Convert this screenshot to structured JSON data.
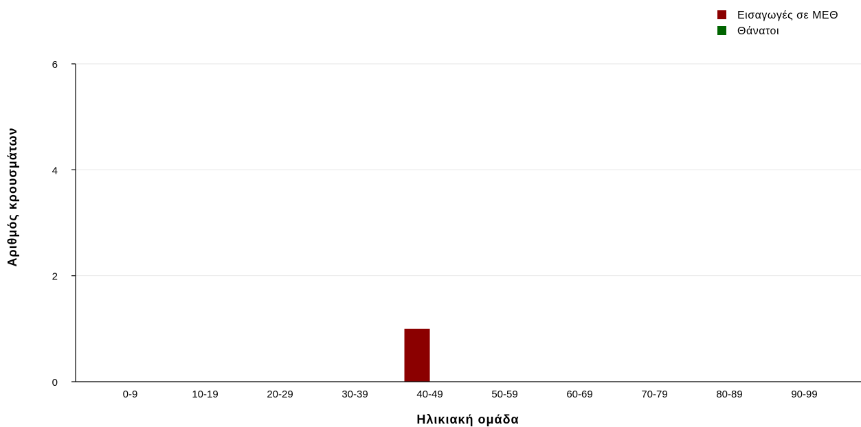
{
  "chart_data": {
    "type": "bar",
    "categories": [
      "0-9",
      "10-19",
      "20-29",
      "30-39",
      "40-49",
      "50-59",
      "60-69",
      "70-79",
      "80-89",
      "90-99"
    ],
    "series": [
      {
        "name": "Εισαγωγές σε ΜΕΘ",
        "color": "#8b0000",
        "values": [
          0,
          0,
          0,
          0,
          1,
          0,
          0,
          0,
          0,
          0
        ]
      },
      {
        "name": "Θάνατοι",
        "color": "#006400",
        "values": [
          0,
          0,
          0,
          0,
          0,
          0,
          0,
          0,
          0,
          0
        ]
      }
    ],
    "xlabel": "Ηλικιακή ομάδα",
    "ylabel": "Αριθμός κρουσμάτων",
    "ylim": [
      0,
      6
    ],
    "yticks": [
      0,
      2,
      4,
      6
    ],
    "grid": true,
    "legend_position": "top-right"
  }
}
